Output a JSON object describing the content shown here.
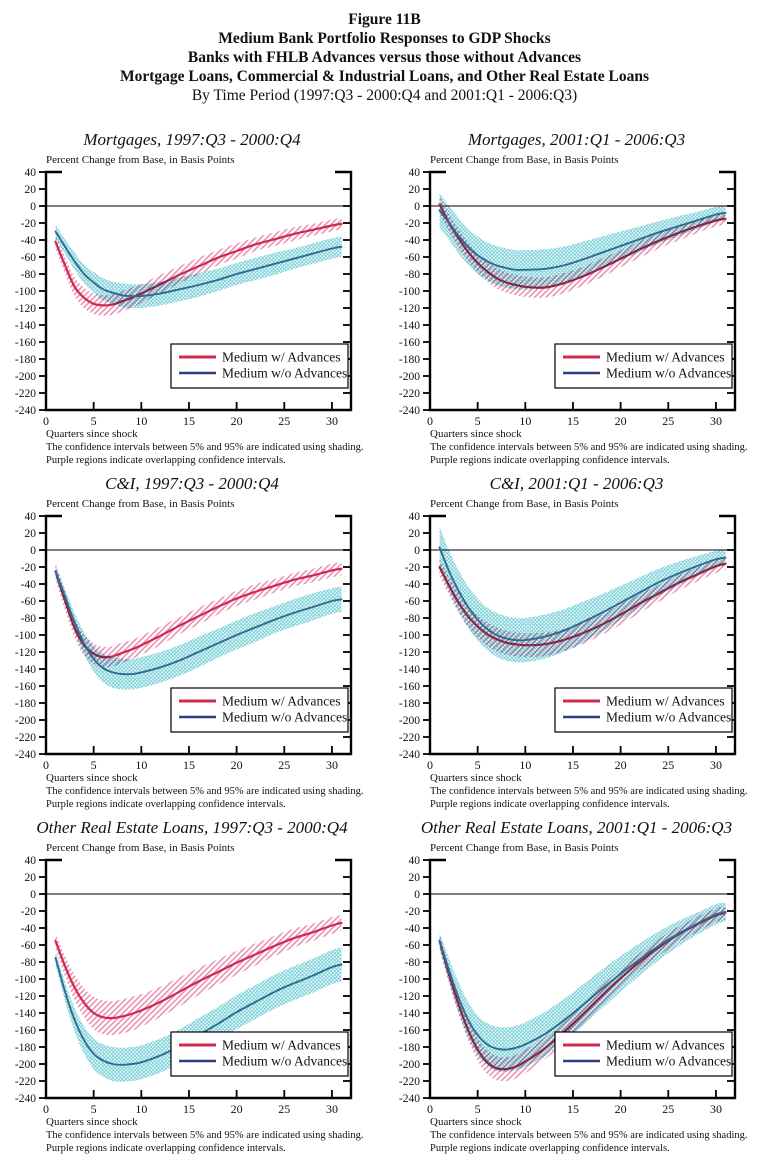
{
  "header": {
    "line1": "Figure 11B",
    "line2": "Medium Bank Portfolio Responses to GDP Shocks",
    "line3": "Banks with FHLB Advances versus those without Advances",
    "line4": "Mortgage Loans, Commercial & Industrial Loans, and Other Real Estate Loans",
    "line5": "By Time Period (1997:Q3 - 2000:Q4 and 2001:Q1 - 2006:Q3)"
  },
  "colors": {
    "with_advances_line": "#cf2a4e",
    "with_advances_band_hatch": "#e784a9",
    "without_advances_line": "#2e6b90",
    "without_advances_legend_line": "#2a3f7d",
    "without_advances_band_hatch": "#79d0d8",
    "axis": "#000000"
  },
  "chart_defaults": {
    "ylabel": "Percent Change from Base, in Basis Points",
    "xlabel": "Quarters since shock",
    "footnote1": "The confidence intervals between 5% and 95% are indicated using shading.",
    "footnote2": "Purple regions indicate overlapping confidence intervals.",
    "legend": [
      {
        "label": "Medium w/ Advances",
        "color": "#cf2a4e"
      },
      {
        "label": "Medium w/o Advances",
        "color": "#2a3f7d"
      }
    ],
    "ylim": [
      -240,
      40
    ],
    "xlim": [
      0,
      32
    ],
    "yticks": [
      40,
      20,
      0,
      -20,
      -40,
      -60,
      -80,
      -100,
      -120,
      -140,
      -160,
      -180,
      -200,
      -220,
      -240
    ],
    "xticks": [
      0,
      5,
      10,
      15,
      20,
      25,
      30
    ],
    "grid": false,
    "legend_position": "lower right"
  },
  "chart_data": [
    {
      "type": "line",
      "title": "Mortgages, 1997:Q3 - 2000:Q4",
      "x": [
        1,
        2,
        3,
        4,
        5,
        6,
        7,
        8,
        9,
        10,
        12,
        14,
        16,
        18,
        20,
        22,
        24,
        26,
        28,
        30,
        31
      ],
      "series": [
        {
          "name": "Medium w/ Advances",
          "values": [
            -42,
            -70,
            -95,
            -108,
            -115,
            -117,
            -116,
            -112,
            -108,
            -103,
            -92,
            -81,
            -71,
            -61,
            -53,
            -45,
            -39,
            -33,
            -28,
            -23,
            -21
          ],
          "ci_half_width": [
            8,
            10,
            11,
            12,
            12,
            12,
            12,
            12,
            12,
            11,
            11,
            10,
            10,
            9,
            9,
            8,
            8,
            8,
            7,
            7,
            7
          ]
        },
        {
          "name": "Medium w/o Advances",
          "values": [
            -30,
            -48,
            -65,
            -80,
            -90,
            -98,
            -102,
            -105,
            -106,
            -106,
            -103,
            -98,
            -93,
            -87,
            -80,
            -74,
            -68,
            -62,
            -56,
            -50,
            -48
          ],
          "ci_half_width": [
            8,
            9,
            10,
            11,
            12,
            13,
            13,
            14,
            14,
            14,
            14,
            14,
            14,
            13,
            13,
            13,
            13,
            12,
            12,
            12,
            12
          ]
        }
      ]
    },
    {
      "type": "line",
      "title": "Mortgages, 2001:Q1 - 2006:Q3",
      "x": [
        1,
        2,
        3,
        4,
        5,
        6,
        7,
        8,
        9,
        10,
        12,
        14,
        16,
        18,
        20,
        22,
        24,
        26,
        28,
        30,
        31
      ],
      "series": [
        {
          "name": "Medium w/ Advances",
          "values": [
            2,
            -20,
            -38,
            -54,
            -67,
            -77,
            -85,
            -90,
            -93,
            -95,
            -96,
            -91,
            -83,
            -73,
            -62,
            -51,
            -41,
            -32,
            -24,
            -17,
            -15
          ],
          "ci_half_width": [
            10,
            10,
            11,
            11,
            11,
            12,
            12,
            12,
            12,
            12,
            12,
            12,
            11,
            11,
            10,
            10,
            9,
            9,
            8,
            7,
            7
          ]
        },
        {
          "name": "Medium w/o Advances",
          "values": [
            -5,
            -20,
            -35,
            -48,
            -58,
            -65,
            -70,
            -73,
            -75,
            -75,
            -74,
            -70,
            -63,
            -55,
            -47,
            -39,
            -31,
            -24,
            -17,
            -10,
            -8
          ],
          "ci_half_width": [
            20,
            20,
            21,
            21,
            22,
            22,
            23,
            23,
            23,
            23,
            23,
            22,
            21,
            19,
            17,
            15,
            13,
            12,
            10,
            9,
            8
          ]
        }
      ]
    },
    {
      "type": "line",
      "title": "C&I, 1997:Q3 - 2000:Q4",
      "x": [
        1,
        2,
        3,
        4,
        5,
        6,
        7,
        8,
        9,
        10,
        12,
        14,
        16,
        18,
        20,
        22,
        24,
        26,
        28,
        30,
        31
      ],
      "series": [
        {
          "name": "Medium w/ Advances",
          "values": [
            -25,
            -60,
            -92,
            -112,
            -122,
            -126,
            -125,
            -121,
            -117,
            -112,
            -101,
            -89,
            -78,
            -67,
            -57,
            -49,
            -42,
            -35,
            -30,
            -24,
            -22
          ],
          "ci_half_width": [
            10,
            11,
            11,
            12,
            12,
            12,
            12,
            12,
            11,
            11,
            11,
            10,
            10,
            9,
            9,
            9,
            8,
            8,
            8,
            8,
            8
          ]
        },
        {
          "name": "Medium w/o Advances",
          "values": [
            -25,
            -55,
            -85,
            -110,
            -128,
            -139,
            -144,
            -146,
            -146,
            -144,
            -138,
            -130,
            -120,
            -110,
            -100,
            -91,
            -82,
            -74,
            -67,
            -60,
            -58
          ],
          "ci_half_width": [
            7,
            9,
            11,
            13,
            15,
            17,
            18,
            18,
            18,
            18,
            18,
            18,
            18,
            17,
            17,
            17,
            16,
            16,
            16,
            15,
            15
          ]
        }
      ]
    },
    {
      "type": "line",
      "title": "C&I, 2001:Q1 - 2006:Q3",
      "x": [
        1,
        2,
        3,
        4,
        5,
        6,
        7,
        8,
        9,
        10,
        12,
        14,
        16,
        18,
        20,
        22,
        24,
        26,
        28,
        30,
        31
      ],
      "series": [
        {
          "name": "Medium w/ Advances",
          "values": [
            -20,
            -42,
            -62,
            -78,
            -90,
            -99,
            -105,
            -109,
            -111,
            -112,
            -111,
            -106,
            -98,
            -88,
            -76,
            -63,
            -51,
            -39,
            -29,
            -19,
            -16
          ],
          "ci_half_width": [
            10,
            11,
            12,
            13,
            13,
            14,
            14,
            14,
            14,
            14,
            14,
            13,
            13,
            12,
            12,
            11,
            10,
            9,
            8,
            8,
            7
          ]
        },
        {
          "name": "Medium w/o Advances",
          "values": [
            3,
            -25,
            -48,
            -67,
            -82,
            -93,
            -100,
            -104,
            -106,
            -106,
            -102,
            -95,
            -85,
            -74,
            -62,
            -50,
            -38,
            -28,
            -19,
            -11,
            -9
          ],
          "ci_half_width": [
            25,
            24,
            24,
            24,
            25,
            25,
            26,
            26,
            26,
            26,
            26,
            25,
            24,
            22,
            20,
            18,
            16,
            14,
            12,
            10,
            9
          ]
        }
      ]
    },
    {
      "type": "line",
      "title": "Other Real Estate Loans, 1997:Q3 - 2000:Q4",
      "x": [
        1,
        2,
        3,
        4,
        5,
        6,
        7,
        8,
        9,
        10,
        12,
        14,
        16,
        18,
        20,
        22,
        24,
        26,
        28,
        30,
        31
      ],
      "series": [
        {
          "name": "Medium w/ Advances",
          "values": [
            -55,
            -85,
            -110,
            -128,
            -140,
            -145,
            -146,
            -144,
            -141,
            -137,
            -127,
            -115,
            -103,
            -92,
            -81,
            -71,
            -61,
            -52,
            -45,
            -37,
            -34
          ],
          "ci_half_width": [
            9,
            12,
            15,
            17,
            19,
            20,
            20,
            20,
            20,
            19,
            18,
            17,
            16,
            15,
            14,
            13,
            12,
            11,
            10,
            10,
            9
          ]
        },
        {
          "name": "Medium w/o Advances",
          "values": [
            -75,
            -115,
            -148,
            -172,
            -188,
            -196,
            -200,
            -201,
            -200,
            -198,
            -190,
            -179,
            -166,
            -153,
            -139,
            -127,
            -115,
            -105,
            -96,
            -86,
            -83
          ],
          "ci_half_width": [
            8,
            11,
            14,
            16,
            18,
            19,
            20,
            20,
            20,
            20,
            20,
            20,
            20,
            20,
            20,
            20,
            20,
            20,
            20,
            20,
            20
          ]
        }
      ]
    },
    {
      "type": "line",
      "title": "Other Real Estate Loans, 2001:Q1 - 2006:Q3",
      "x": [
        1,
        2,
        3,
        4,
        5,
        6,
        7,
        8,
        9,
        10,
        12,
        14,
        16,
        18,
        20,
        22,
        24,
        26,
        28,
        30,
        31
      ],
      "series": [
        {
          "name": "Medium w/ Advances",
          "values": [
            -55,
            -95,
            -130,
            -160,
            -183,
            -198,
            -205,
            -206,
            -203,
            -197,
            -182,
            -163,
            -142,
            -120,
            -99,
            -80,
            -63,
            -48,
            -36,
            -25,
            -22
          ],
          "ci_half_width": [
            8,
            10,
            11,
            12,
            13,
            14,
            14,
            14,
            14,
            14,
            13,
            13,
            12,
            12,
            11,
            10,
            10,
            9,
            9,
            8,
            8
          ]
        },
        {
          "name": "Medium w/o Advances",
          "values": [
            -55,
            -90,
            -122,
            -148,
            -166,
            -177,
            -182,
            -183,
            -181,
            -177,
            -165,
            -149,
            -131,
            -112,
            -94,
            -77,
            -61,
            -47,
            -35,
            -24,
            -21
          ],
          "ci_half_width": [
            10,
            14,
            18,
            21,
            23,
            25,
            26,
            26,
            26,
            26,
            26,
            25,
            24,
            23,
            21,
            19,
            17,
            15,
            13,
            12,
            11
          ]
        }
      ]
    }
  ]
}
